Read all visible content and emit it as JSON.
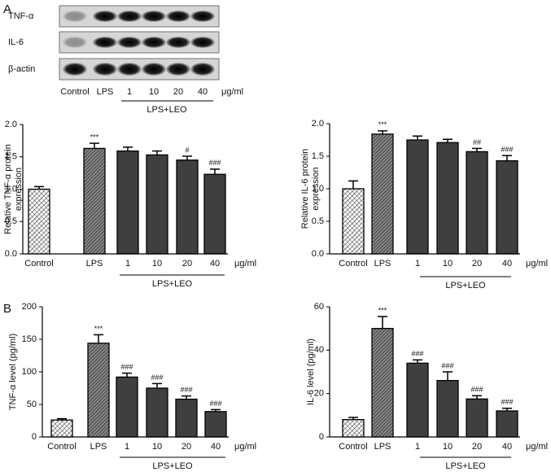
{
  "panel_labels": [
    "A",
    "B"
  ],
  "blot": {
    "rows": [
      "TNF-α",
      "IL-6",
      "β-actin"
    ],
    "lanes": [
      "Control",
      "LPS",
      "1",
      "10",
      "20",
      "40"
    ],
    "unit": "μg/ml",
    "group_label": "LPS+LEO"
  },
  "chart_data": [
    {
      "type": "bar",
      "ylabel": [
        "Relative TNF-α protein",
        "expression"
      ],
      "categories": [
        "Control",
        "LPS",
        "1",
        "10",
        "20",
        "40"
      ],
      "unit": "μg/ml",
      "group_label": "LPS+LEO",
      "values": [
        1.0,
        1.63,
        1.59,
        1.53,
        1.45,
        1.23
      ],
      "errors": [
        0.04,
        0.08,
        0.06,
        0.06,
        0.06,
        0.08
      ],
      "sig_labels": [
        null,
        "***",
        null,
        null,
        "#",
        "###"
      ],
      "colors": [
        "#ffffff",
        "#9a9a9a",
        "#3f3f3f",
        "#3f3f3f",
        "#3f3f3f",
        "#3f3f3f"
      ],
      "hatched": [
        true,
        true,
        false,
        false,
        false,
        false
      ],
      "ylim": [
        0,
        2.0
      ],
      "yticks": [
        {
          "value": 0,
          "label": "0.0"
        },
        {
          "value": 0.5,
          "label": "0.5"
        },
        {
          "value": 1.0,
          "label": "1.0"
        },
        {
          "value": 1.5,
          "label": "1.5"
        },
        {
          "value": 2.0,
          "label": "2.0"
        }
      ]
    },
    {
      "type": "bar",
      "ylabel": [
        "Relative IL-6 protein",
        "expression"
      ],
      "categories": [
        "Control",
        "LPS",
        "1",
        "10",
        "20",
        "40"
      ],
      "unit": "μg/ml",
      "group_label": "LPS+LEO",
      "values": [
        1.0,
        1.84,
        1.75,
        1.71,
        1.57,
        1.43
      ],
      "errors": [
        0.12,
        0.05,
        0.06,
        0.05,
        0.05,
        0.08
      ],
      "sig_labels": [
        null,
        "***",
        null,
        null,
        "##",
        "###"
      ],
      "colors": [
        "#ffffff",
        "#9a9a9a",
        "#3f3f3f",
        "#3f3f3f",
        "#3f3f3f",
        "#3f3f3f"
      ],
      "hatched": [
        true,
        true,
        false,
        false,
        false,
        false
      ],
      "ylim": [
        0,
        2.0
      ],
      "yticks": [
        {
          "value": 0,
          "label": "0.0"
        },
        {
          "value": 0.5,
          "label": "0.5"
        },
        {
          "value": 1.0,
          "label": "1.0"
        },
        {
          "value": 1.5,
          "label": "1.5"
        },
        {
          "value": 2.0,
          "label": "2.0"
        }
      ]
    },
    {
      "type": "bar",
      "ylabel": [
        "TNF-α level (pg/ml)"
      ],
      "categories": [
        "Control",
        "LPS",
        "1",
        "10",
        "20",
        "40"
      ],
      "unit": "μg/ml",
      "group_label": "LPS+LEO",
      "values": [
        26,
        144,
        92,
        75,
        58,
        39
      ],
      "errors": [
        2,
        13,
        6,
        7,
        5,
        3
      ],
      "sig_labels": [
        null,
        "***",
        "###",
        "###",
        "###",
        "###"
      ],
      "colors": [
        "#ffffff",
        "#9a9a9a",
        "#3f3f3f",
        "#3f3f3f",
        "#3f3f3f",
        "#3f3f3f"
      ],
      "hatched": [
        true,
        true,
        false,
        false,
        false,
        false
      ],
      "ylim": [
        0,
        200
      ],
      "yticks": [
        0,
        50,
        100,
        150,
        200
      ]
    },
    {
      "type": "bar",
      "ylabel": [
        "IL-6 level (pg/ml)"
      ],
      "categories": [
        "Control",
        "LPS",
        "1",
        "10",
        "20",
        "40"
      ],
      "unit": "μg/ml",
      "group_label": "LPS+LEO",
      "values": [
        8,
        50,
        34,
        26,
        17.5,
        12
      ],
      "errors": [
        1,
        5.5,
        1.5,
        4,
        1.5,
        1.2
      ],
      "sig_labels": [
        null,
        "***",
        "###",
        "###",
        "###",
        "###"
      ],
      "colors": [
        "#ffffff",
        "#9a9a9a",
        "#3f3f3f",
        "#3f3f3f",
        "#3f3f3f",
        "#3f3f3f"
      ],
      "hatched": [
        true,
        true,
        false,
        false,
        false,
        false
      ],
      "ylim": [
        0,
        60
      ],
      "yticks": [
        0,
        20,
        40,
        60
      ]
    }
  ]
}
